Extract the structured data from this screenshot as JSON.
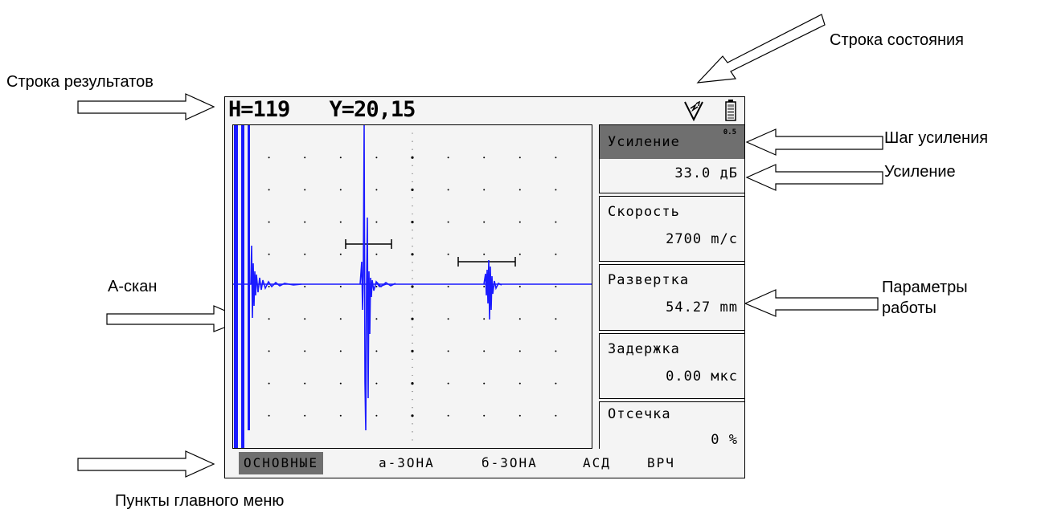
{
  "callouts": {
    "status_line": "Строка состояния",
    "results_line": "Строка результатов",
    "gain_step": "Шаг усиления",
    "gain": "Усиление",
    "a_scan": "А-скан",
    "params_line1": "Параметры",
    "params_line2": "работы",
    "main_menu": "Пункты главного меню"
  },
  "results": {
    "h": "H=119",
    "y": "Y=20,15"
  },
  "status_icons": [
    "trigger-icon",
    "battery-icon"
  ],
  "params": [
    {
      "label": "Усиление",
      "value": "33.0 дБ",
      "step": "0.5",
      "selected": true
    },
    {
      "label": "Скорость",
      "value": "2700 m/c"
    },
    {
      "label": "Развертка",
      "value": "54.27 mm"
    },
    {
      "label": "Задержка",
      "value": "0.00 мкс"
    },
    {
      "label": "Отсечка",
      "value": "0 %"
    }
  ],
  "menu": [
    {
      "label": "ОСНОВНЫЕ",
      "active": true
    },
    {
      "label": "а-ЗОНА"
    },
    {
      "label": "б-ЗОНА"
    },
    {
      "label": "АСД"
    },
    {
      "label": "ВРЧ"
    }
  ],
  "colors": {
    "signal": "#1a1aff",
    "selected": "#6f6f6f",
    "lcd_bg": "#f4f4f4"
  }
}
